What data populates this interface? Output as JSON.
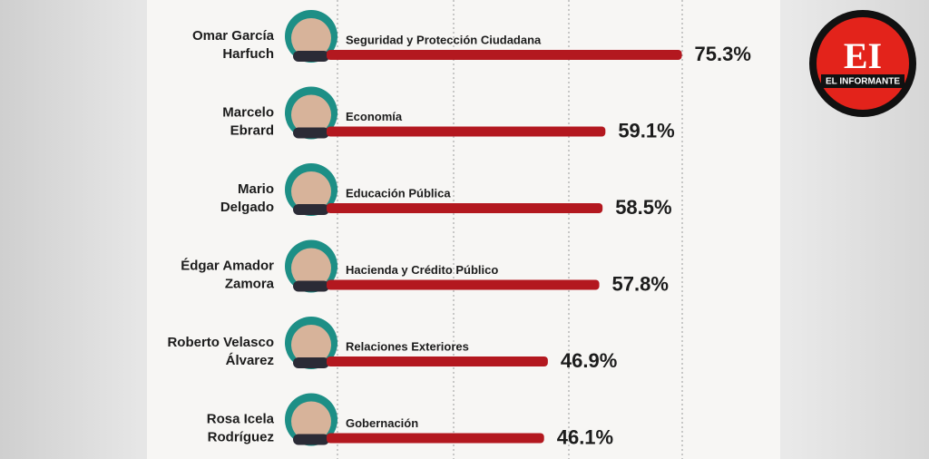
{
  "chart_data": {
    "type": "bar",
    "orientation": "horizontal",
    "categories": [
      [
        "Omar García",
        "Harfuch"
      ],
      [
        "Marcelo",
        "Ebrard"
      ],
      [
        "Mario",
        "Delgado"
      ],
      [
        "Édgar Amador",
        "Zamora"
      ],
      [
        "Roberto Velasco",
        "Álvarez"
      ],
      [
        "Rosa Icela",
        "Rodríguez"
      ]
    ],
    "bar_labels": [
      "Seguridad y Protección Ciudadana",
      "Economía",
      "Educación Pública",
      "Hacienda y Crédito Público",
      "Relaciones Exteriores",
      "Gobernación"
    ],
    "values": [
      75.3,
      59.1,
      58.5,
      57.8,
      46.9,
      46.1
    ],
    "value_labels": [
      "75.3%",
      "59.1%",
      "58.5%",
      "57.8%",
      "46.9%",
      "46.1%"
    ],
    "color": "#b3181f"
  },
  "logo": {
    "mark": "EI",
    "name": "EL INFORMANTE"
  }
}
